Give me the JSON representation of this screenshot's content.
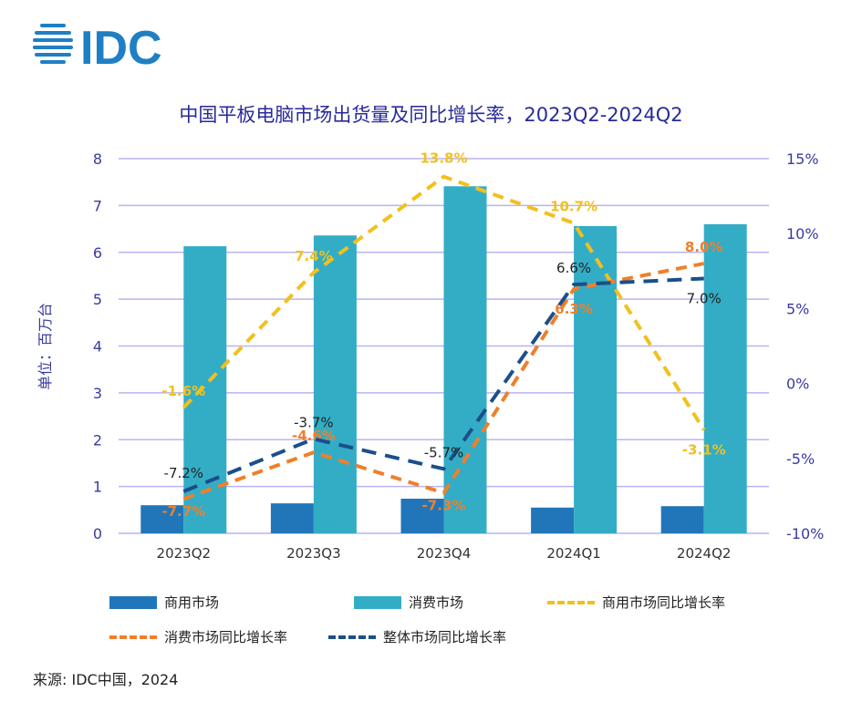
{
  "logo": "IDC",
  "chart_data": {
    "type": "bar+line",
    "title": "中国平板电脑市场出货量及同比增长率，2023Q2-2024Q2",
    "ylabel": "单位：百万台",
    "categories": [
      "2023Q2",
      "2023Q3",
      "2023Q4",
      "2024Q1",
      "2024Q2"
    ],
    "ylim": [
      0,
      8
    ],
    "yticks": [
      "0",
      "1",
      "2",
      "3",
      "4",
      "5",
      "6",
      "7",
      "8"
    ],
    "y2lim": [
      -10,
      15
    ],
    "y2ticks": [
      "-10%",
      "-5%",
      "0%",
      "5%",
      "10%",
      "15%"
    ],
    "grid": true,
    "legend_position": "bottom",
    "bars": [
      {
        "name": "商用市场",
        "color": "#2176b9",
        "values": [
          0.6,
          0.64,
          0.74,
          0.55,
          0.58
        ]
      },
      {
        "name": "消费市场",
        "color": "#33adc6",
        "values": [
          6.13,
          6.36,
          7.41,
          6.56,
          6.6
        ]
      }
    ],
    "lines": [
      {
        "name": "商用市场同比增长率",
        "color": "#f2c01e",
        "values": [
          -1.6,
          7.4,
          13.8,
          10.7,
          -3.1
        ],
        "labels": [
          "-1.6%",
          "7.4%",
          "13.8%",
          "10.7%",
          "-3.1%"
        ]
      },
      {
        "name": "消费市场同比增长率",
        "color": "#f07f2a",
        "values": [
          -7.7,
          -4.6,
          -7.3,
          6.3,
          8.0
        ],
        "labels": [
          "-7.7%",
          "-4.6%",
          "-7.3%",
          "6.3%",
          "8.0%"
        ]
      },
      {
        "name": "整体市场同比增长率",
        "color": "#1b4f8a",
        "values": [
          -7.2,
          -3.7,
          -5.7,
          6.6,
          7.0
        ],
        "labels": [
          "-7.2%",
          "-3.7%",
          "-5.7%",
          "6.6%",
          "7.0%"
        ]
      }
    ]
  },
  "source": "来源: IDC中国，2024"
}
